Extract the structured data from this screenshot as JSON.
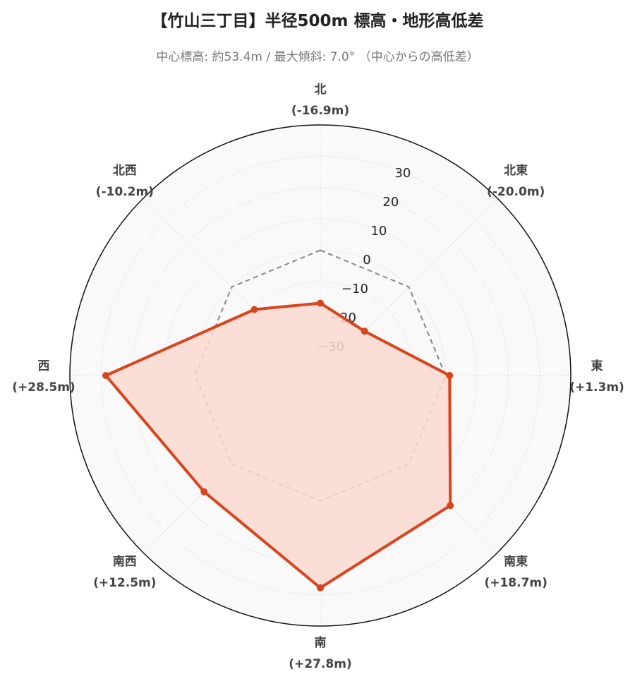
{
  "title": "【竹山三丁目】半径500m 標高・地形高低差",
  "subtitle": "中心標高: 約53.4m / 最大傾斜: 7.0° （中心からの高低差）",
  "chart_data": {
    "type": "radar",
    "categories": [
      "北",
      "北東",
      "東",
      "南東",
      "南",
      "南西",
      "西",
      "北西"
    ],
    "category_labels": [
      "(-16.9m)",
      "(-20.0m)",
      "(+1.3m)",
      "(+18.7m)",
      "(+27.8m)",
      "(+12.5m)",
      "(+28.5m)",
      "(-10.2m)"
    ],
    "series": [
      {
        "values": [
          -16.9,
          -20.0,
          1.3,
          18.7,
          27.8,
          12.5,
          28.5,
          -10.2
        ],
        "color": "#d9441c",
        "fill": "#fcd9d0"
      },
      {
        "values": [
          0,
          0,
          0,
          0,
          0,
          0,
          0,
          0
        ],
        "color": "#888888",
        "style": "dashed"
      }
    ],
    "radial_ticks": [
      "30",
      "20",
      "10",
      "0",
      "−10",
      "−20",
      "−30"
    ],
    "radial_tick_values": [
      30,
      20,
      10,
      0,
      -10,
      -20,
      -30
    ],
    "rlim": [
      -40,
      40
    ],
    "grid": true
  }
}
